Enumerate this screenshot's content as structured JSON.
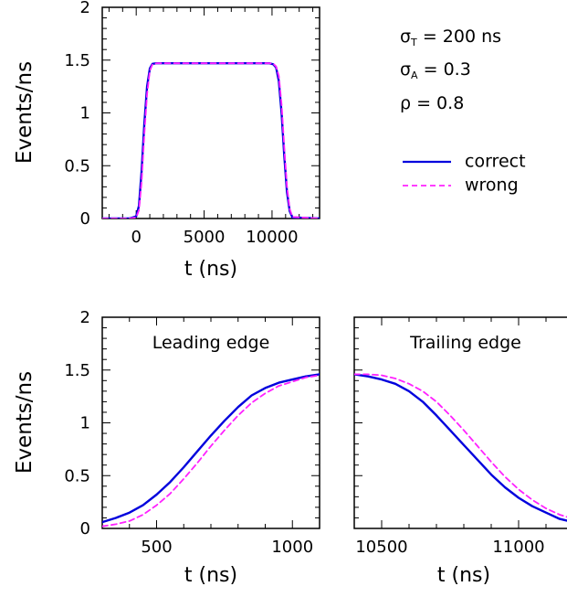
{
  "legend": {
    "params": [
      "σT = 200 ns",
      "σA = 0.3",
      "ρ = 0.8"
    ],
    "items": [
      {
        "label": "correct",
        "color": "#0000dd",
        "style": "solid"
      },
      {
        "label": "wrong",
        "color": "#ff22ff",
        "style": "dashed"
      }
    ]
  },
  "chart_data": [
    {
      "type": "line",
      "panel": "full-pulse",
      "title": "",
      "xlabel": "t (ns)",
      "ylabel": "Events/ns",
      "xlim": [
        -2500,
        13500
      ],
      "ylim": [
        0,
        2
      ],
      "xticks": [
        0,
        5000,
        10000
      ],
      "xtick_labels": [
        "0",
        "5000",
        "10000"
      ],
      "yticks": [
        0,
        0.5,
        1,
        1.5,
        2
      ],
      "ytick_labels": [
        "0",
        "0.5",
        "1",
        "1.5",
        "2"
      ],
      "series": [
        {
          "name": "correct",
          "color": "#0000dd",
          "style": "solid",
          "x": [
            -2500,
            -500,
            0,
            200,
            400,
            600,
            800,
            1000,
            1200,
            1500,
            5000,
            9800,
            10100,
            10300,
            10500,
            10700,
            10900,
            11100,
            11300,
            11500,
            13500
          ],
          "y": [
            0,
            0,
            0.02,
            0.12,
            0.45,
            0.9,
            1.25,
            1.42,
            1.465,
            1.47,
            1.47,
            1.47,
            1.46,
            1.43,
            1.3,
            1.0,
            0.6,
            0.25,
            0.07,
            0.01,
            0
          ]
        },
        {
          "name": "wrong",
          "color": "#ff22ff",
          "style": "dashed",
          "x": [
            -2500,
            -500,
            0,
            200,
            400,
            600,
            800,
            1000,
            1200,
            1500,
            5000,
            9800,
            10100,
            10300,
            10500,
            10700,
            10900,
            11100,
            11300,
            11500,
            13500
          ],
          "y": [
            0,
            0,
            0.01,
            0.08,
            0.35,
            0.8,
            1.18,
            1.4,
            1.46,
            1.47,
            1.47,
            1.47,
            1.465,
            1.44,
            1.35,
            1.08,
            0.68,
            0.3,
            0.09,
            0.015,
            0
          ]
        }
      ]
    },
    {
      "type": "line",
      "panel": "leading-edge",
      "title": "Leading edge",
      "xlabel": "t (ns)",
      "ylabel": "Events/ns",
      "xlim": [
        300,
        1100
      ],
      "ylim": [
        0,
        2
      ],
      "xticks": [
        500,
        1000
      ],
      "xtick_labels": [
        "500",
        "1000"
      ],
      "yticks": [
        0,
        0.5,
        1,
        1.5,
        2
      ],
      "ytick_labels": [
        "0",
        "0.5",
        "1",
        "1.5",
        "2"
      ],
      "series": [
        {
          "name": "correct",
          "color": "#0000dd",
          "style": "solid",
          "x": [
            300,
            350,
            400,
            450,
            500,
            550,
            600,
            650,
            700,
            750,
            800,
            850,
            900,
            950,
            1000,
            1050,
            1100
          ],
          "y": [
            0.06,
            0.1,
            0.15,
            0.22,
            0.32,
            0.44,
            0.58,
            0.73,
            0.88,
            1.02,
            1.15,
            1.26,
            1.33,
            1.38,
            1.41,
            1.44,
            1.46
          ]
        },
        {
          "name": "wrong",
          "color": "#ff22ff",
          "style": "dashed",
          "x": [
            300,
            350,
            400,
            450,
            500,
            550,
            600,
            650,
            700,
            750,
            800,
            850,
            900,
            950,
            1000,
            1050,
            1100
          ],
          "y": [
            0.02,
            0.04,
            0.07,
            0.13,
            0.22,
            0.33,
            0.47,
            0.62,
            0.78,
            0.93,
            1.07,
            1.19,
            1.28,
            1.35,
            1.39,
            1.43,
            1.45
          ]
        }
      ]
    },
    {
      "type": "line",
      "panel": "trailing-edge",
      "title": "Trailing edge",
      "xlabel": "t (ns)",
      "ylabel": "",
      "xlim": [
        10400,
        11200
      ],
      "ylim": [
        0,
        2
      ],
      "xticks": [
        10500,
        11000
      ],
      "xtick_labels": [
        "10500",
        "11000"
      ],
      "yticks": [
        0,
        0.5,
        1,
        1.5,
        2
      ],
      "ytick_labels": [],
      "series": [
        {
          "name": "correct",
          "color": "#0000dd",
          "style": "solid",
          "x": [
            10400,
            10450,
            10500,
            10550,
            10600,
            10650,
            10700,
            10750,
            10800,
            10850,
            10900,
            10950,
            11000,
            11050,
            11100,
            11150,
            11200
          ],
          "y": [
            1.46,
            1.44,
            1.41,
            1.37,
            1.3,
            1.2,
            1.07,
            0.93,
            0.79,
            0.65,
            0.51,
            0.39,
            0.29,
            0.21,
            0.15,
            0.09,
            0.06
          ]
        },
        {
          "name": "wrong",
          "color": "#ff22ff",
          "style": "dashed",
          "x": [
            10400,
            10450,
            10500,
            10550,
            10600,
            10650,
            10700,
            10750,
            10800,
            10850,
            10900,
            10950,
            11000,
            11050,
            11100,
            11150,
            11200
          ],
          "y": [
            1.46,
            1.46,
            1.45,
            1.42,
            1.37,
            1.3,
            1.2,
            1.07,
            0.93,
            0.78,
            0.63,
            0.49,
            0.37,
            0.27,
            0.19,
            0.13,
            0.09
          ]
        }
      ]
    }
  ]
}
